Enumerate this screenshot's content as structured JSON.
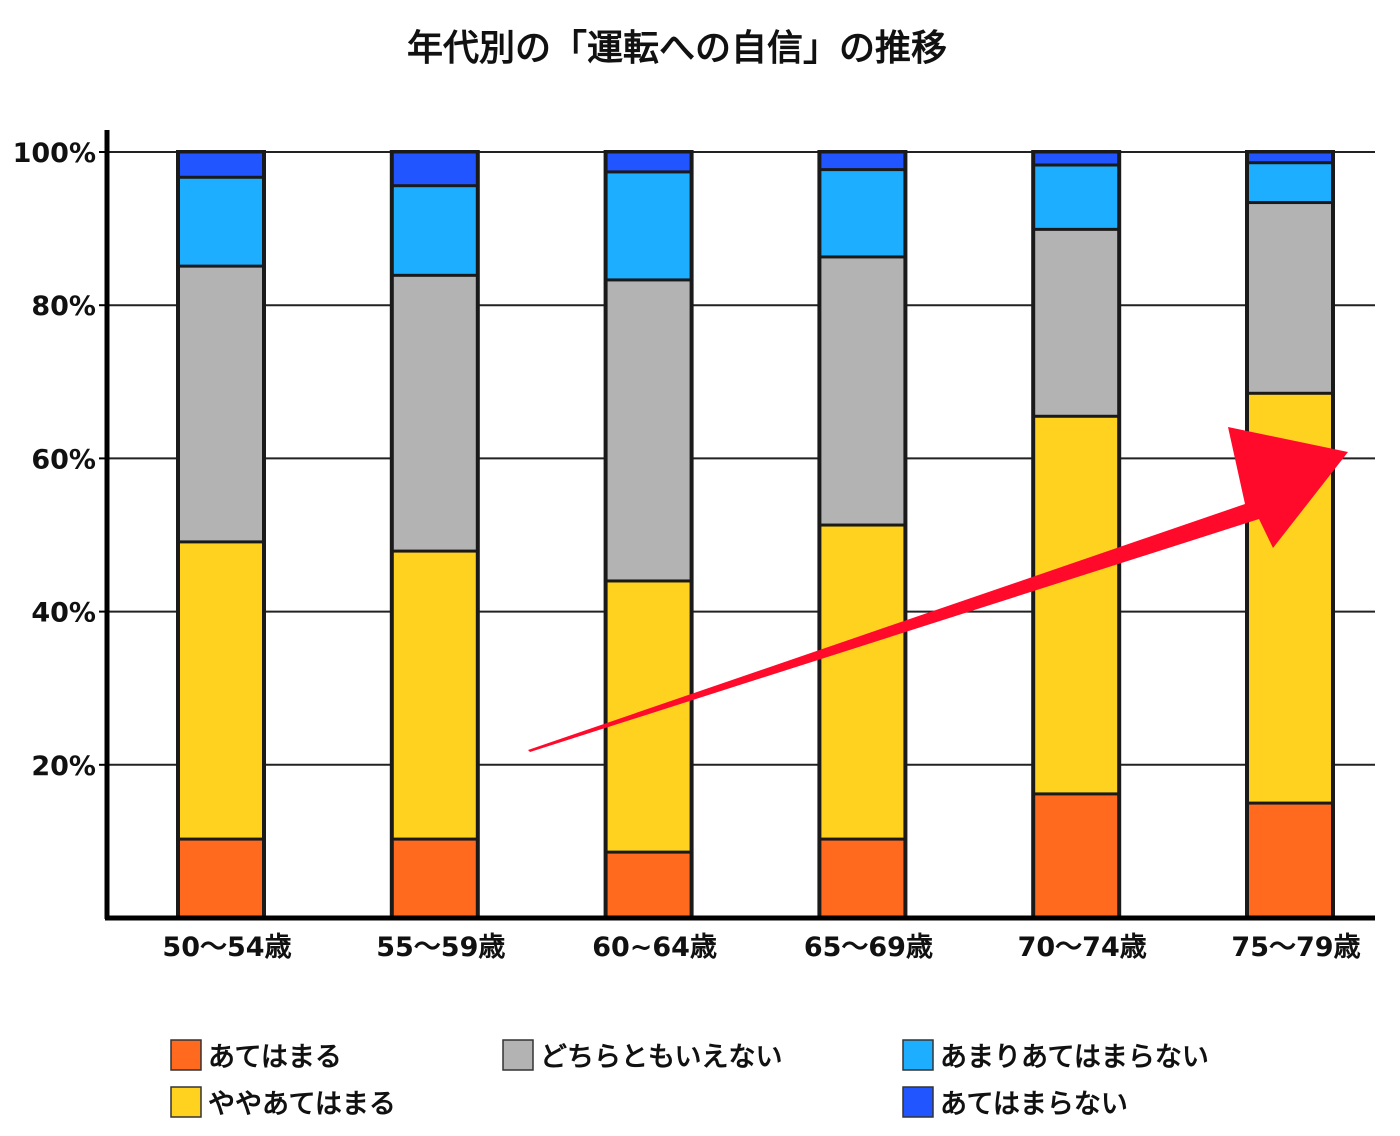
{
  "chart_data": {
    "type": "bar",
    "stacked": true,
    "title": "年代別の「運転への自信」の推移",
    "categories": [
      "50〜54歳",
      "55〜59歳",
      "60~64歳",
      "65〜69歳",
      "70〜74歳",
      "75〜79歳"
    ],
    "series": [
      {
        "name": "あてはまる",
        "color": "#ff6a1f",
        "values": [
          10.3,
          10.3,
          8.6,
          10.3,
          16.2,
          15.0
        ]
      },
      {
        "name": "ややあてはまる",
        "color": "#ffd21f",
        "values": [
          38.8,
          37.6,
          35.4,
          41.0,
          49.3,
          53.5
        ]
      },
      {
        "name": "どちらともいえない",
        "color": "#b3b3b3",
        "values": [
          36.0,
          36.0,
          39.3,
          35.0,
          24.4,
          24.9
        ]
      },
      {
        "name": "あまりあてはまらない",
        "color": "#1eaeff",
        "values": [
          11.6,
          11.7,
          14.1,
          11.4,
          8.4,
          5.2
        ]
      },
      {
        "name": "あてはまらない",
        "color": "#2155ff",
        "values": [
          3.3,
          4.4,
          2.6,
          2.3,
          1.7,
          1.4
        ]
      }
    ],
    "ylim": [
      0,
      100
    ],
    "yticks": [
      "20%",
      "40%",
      "60%",
      "80%",
      "100%"
    ],
    "ytick_values": [
      20,
      40,
      60,
      80,
      100
    ],
    "grid": true,
    "legend_position": "bottom",
    "annotation": {
      "type": "arrow",
      "color": "#ff0a2a",
      "direction": "upward-right"
    }
  }
}
